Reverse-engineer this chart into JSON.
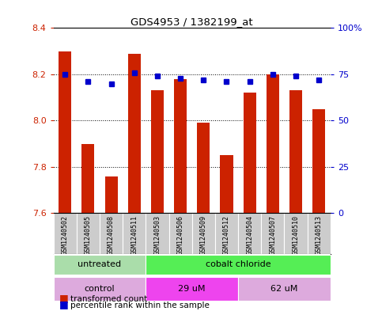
{
  "title": "GDS4953 / 1382199_at",
  "samples": [
    "GSM1240502",
    "GSM1240505",
    "GSM1240508",
    "GSM1240511",
    "GSM1240503",
    "GSM1240506",
    "GSM1240509",
    "GSM1240512",
    "GSM1240504",
    "GSM1240507",
    "GSM1240510",
    "GSM1240513"
  ],
  "bar_values": [
    8.3,
    7.9,
    7.76,
    8.29,
    8.13,
    8.18,
    7.99,
    7.85,
    8.12,
    8.2,
    8.13,
    8.05
  ],
  "dot_values": [
    75,
    71,
    70,
    76,
    74,
    73,
    72,
    71,
    71,
    75,
    74,
    72
  ],
  "ylim_left": [
    7.6,
    8.4
  ],
  "ylim_right": [
    0,
    100
  ],
  "yticks_left": [
    7.6,
    7.8,
    8.0,
    8.2,
    8.4
  ],
  "yticks_right": [
    0,
    25,
    50,
    75,
    100
  ],
  "ytick_labels_right": [
    "0",
    "25",
    "50",
    "75",
    "100%"
  ],
  "bar_color": "#cc2200",
  "dot_color": "#0000cc",
  "bar_bottom": 7.6,
  "agent_groups": [
    {
      "label": "untreated",
      "start": 0,
      "end": 4,
      "color": "#aaddaa"
    },
    {
      "label": "cobalt chloride",
      "start": 4,
      "end": 12,
      "color": "#55ee55"
    }
  ],
  "dose_groups": [
    {
      "label": "control",
      "start": 0,
      "end": 4,
      "color": "#ddaadd"
    },
    {
      "label": "29 uM",
      "start": 4,
      "end": 8,
      "color": "#ee44ee"
    },
    {
      "label": "62 uM",
      "start": 8,
      "end": 12,
      "color": "#ddaadd"
    }
  ],
  "legend_bar_label": "transformed count",
  "legend_dot_label": "percentile rank within the sample",
  "background_color": "#ffffff",
  "sample_box_color": "#cccccc",
  "grid_color": "#000000",
  "tick_color_left": "#cc2200",
  "tick_color_right": "#0000cc",
  "agent_label_color": "#000000",
  "dose_label_color": "#000000"
}
